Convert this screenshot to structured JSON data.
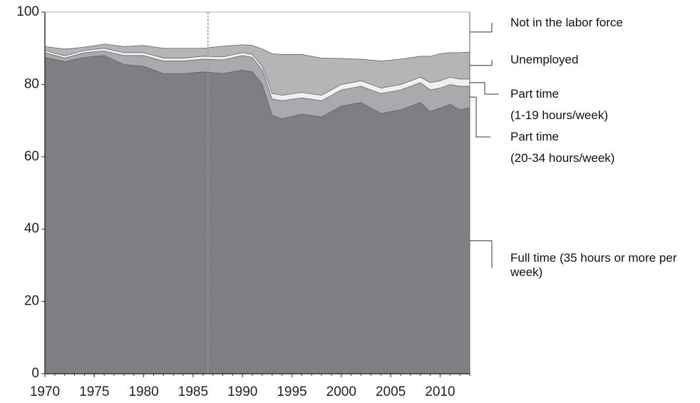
{
  "chart_data": {
    "type": "stacked_area",
    "x": [
      1970,
      1972,
      1974,
      1976,
      1978,
      1980,
      1982,
      1984,
      1986,
      1988,
      1990,
      1991,
      1992,
      1993,
      1994,
      1996,
      1998,
      2000,
      2002,
      2004,
      2006,
      2008,
      2009,
      2010,
      2011,
      2012,
      2013
    ],
    "series": [
      {
        "name": "Full time (35 hours or more per week)",
        "color": "#7e7f83",
        "values": [
          87.5,
          86.3,
          87.5,
          88,
          85.5,
          85,
          83,
          83,
          83.5,
          83,
          84,
          83.5,
          80,
          71.5,
          70.5,
          71.8,
          71,
          74,
          75,
          72,
          73,
          75,
          72.5,
          73.5,
          74.5,
          73,
          73.5
        ]
      },
      {
        "name": "Part time",
        "note": "(20-34 hours/week)",
        "color": "#a9aaad",
        "values": [
          1.3,
          1,
          1.3,
          1.3,
          2.5,
          3,
          3.5,
          3.5,
          3.5,
          3.8,
          4,
          4,
          4,
          4.5,
          5,
          4.5,
          4.5,
          4.5,
          4.5,
          5.5,
          5.5,
          5.5,
          6,
          5.5,
          5.5,
          6.5,
          6
        ]
      },
      {
        "name": "Part time",
        "note": "(1-19 hours/week)",
        "color": "#f0f0f0",
        "values": [
          0.6,
          0.6,
          0.6,
          0.7,
          0.8,
          0.8,
          0.8,
          0.8,
          0.8,
          0.8,
          0.8,
          0.8,
          1,
          1.5,
          1.5,
          1.5,
          1.5,
          1.5,
          1.5,
          1.5,
          1.5,
          1.5,
          2,
          2,
          2,
          2,
          2
        ]
      },
      {
        "name": "Unemployed",
        "color": "#b4b5b7",
        "values": [
          1.1,
          1.9,
          0.9,
          1.2,
          1.7,
          2,
          2.7,
          2.7,
          2.2,
          3,
          2.2,
          2.5,
          4.8,
          11,
          11.3,
          10.5,
          10.3,
          7.2,
          6,
          7.5,
          7,
          5.8,
          7.3,
          7.5,
          6.8,
          7.3,
          7.5
        ]
      },
      {
        "name": "Not in the labor force",
        "color": "#ffffff",
        "values": [
          9.5,
          10.2,
          9.7,
          8.8,
          9.5,
          9.2,
          10,
          10,
          10,
          9.4,
          9,
          9.2,
          10.2,
          11.5,
          11.7,
          11.7,
          12.7,
          12.8,
          13,
          13.5,
          13,
          12.2,
          12.2,
          11.5,
          11.2,
          11.2,
          11
        ]
      }
    ],
    "vline_x": 1986.5,
    "xlim": [
      1970,
      2013
    ],
    "xticks": [
      1970,
      1975,
      1980,
      1985,
      1990,
      1995,
      2000,
      2005,
      2010
    ],
    "ylim": [
      0,
      100
    ],
    "yticks": [
      0,
      20,
      40,
      60,
      80,
      100
    ]
  }
}
